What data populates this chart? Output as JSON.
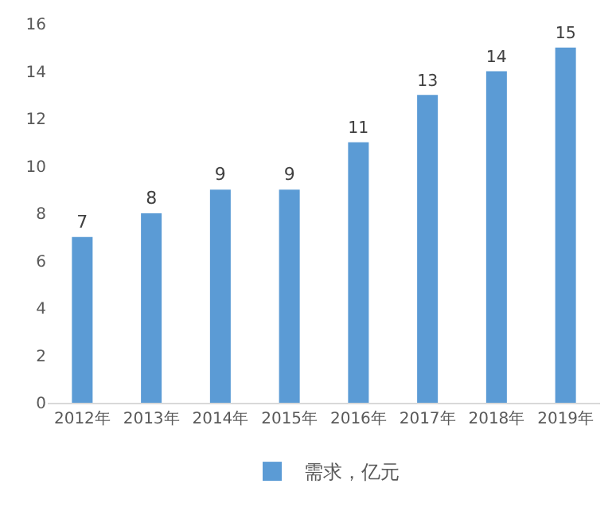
{
  "chart_data": {
    "type": "bar",
    "categories": [
      "2012年",
      "2013年",
      "2014年",
      "2015年",
      "2016年",
      "2017年",
      "2018年",
      "2019年"
    ],
    "series": [
      {
        "name": "需求，亿元",
        "color": "#5b9bd5",
        "values": [
          7,
          8,
          9,
          9,
          11,
          13,
          14,
          15
        ]
      }
    ],
    "ylim": [
      0,
      16
    ],
    "yticks": [
      0,
      2,
      4,
      6,
      8,
      10,
      12,
      14,
      16
    ],
    "data_labels": true,
    "grid": false,
    "legend": "bottom"
  }
}
